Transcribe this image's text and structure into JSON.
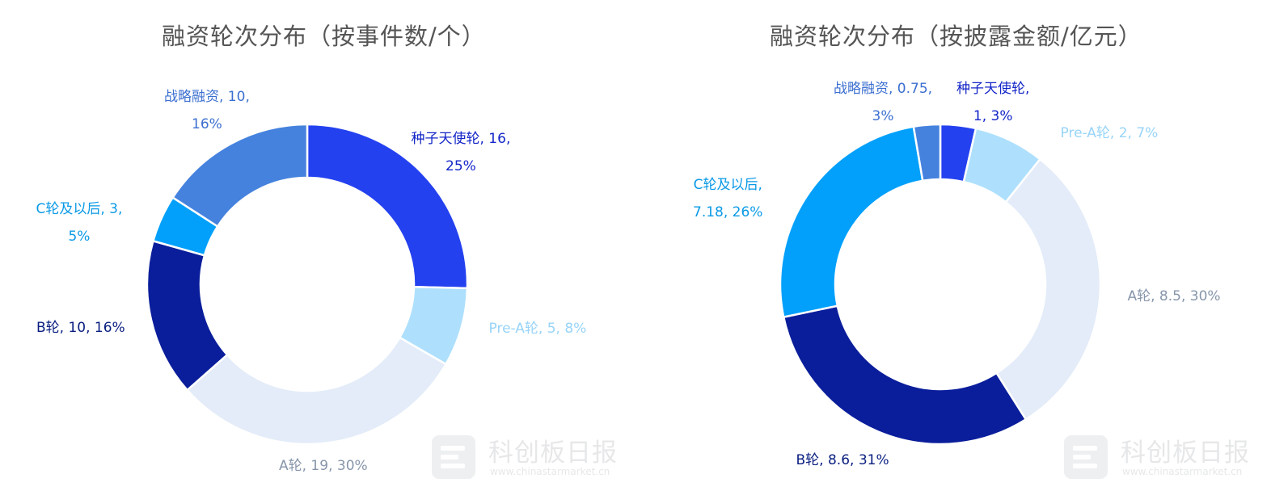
{
  "chart_data": [
    {
      "type": "donut",
      "title": "融资轮次分布（按事件数/个）",
      "slices": [
        {
          "name": "种子天使轮",
          "value": 16,
          "percent": "25%",
          "color": "#2441ef",
          "label_lines": [
            "种子天使轮, 16,",
            "25%"
          ]
        },
        {
          "name": "Pre-A轮",
          "value": 5,
          "percent": "8%",
          "color": "#aee0fd",
          "label_lines": [
            "Pre-A轮, 5, 8%"
          ]
        },
        {
          "name": "A轮",
          "value": 19,
          "percent": "30%",
          "color": "#e3ecf8",
          "label_lines": [
            "A轮, 19, 30%"
          ]
        },
        {
          "name": "B轮",
          "value": 10,
          "percent": "16%",
          "color": "#0a1e9b",
          "label_lines": [
            "B轮, 10, 16%"
          ]
        },
        {
          "name": "C轮及以后",
          "value": 3,
          "percent": "5%",
          "color": "#02a0fb",
          "label_lines": [
            "C轮及以后, 3,",
            "5%"
          ]
        },
        {
          "name": "战略融资",
          "value": 10,
          "percent": "16%",
          "color": "#4582de",
          "label_lines": [
            "战略融资, 10,",
            "16%"
          ]
        }
      ]
    },
    {
      "type": "donut",
      "title": "融资轮次分布（按披露金额/亿元）",
      "slices": [
        {
          "name": "种子天使轮",
          "value": 1,
          "percent": "3%",
          "color": "#2441ef",
          "label_lines": [
            "种子天使轮,",
            "1, 3%"
          ]
        },
        {
          "name": "Pre-A轮",
          "value": 2,
          "percent": "7%",
          "color": "#aee0fd",
          "label_lines": [
            "Pre-A轮, 2, 7%"
          ]
        },
        {
          "name": "A轮",
          "value": 8.5,
          "percent": "30%",
          "color": "#e3ecf8",
          "label_lines": [
            "A轮, 8.5, 30%"
          ]
        },
        {
          "name": "B轮",
          "value": 8.6,
          "percent": "31%",
          "color": "#0a1e9b",
          "label_lines": [
            "B轮, 8.6, 31%"
          ]
        },
        {
          "name": "C轮及以后",
          "value": 7.18,
          "percent": "26%",
          "color": "#02a0fb",
          "label_lines": [
            "C轮及以后,",
            "7.18, 26%"
          ]
        },
        {
          "name": "战略融资",
          "value": 0.75,
          "percent": "3%",
          "color": "#4582de",
          "label_lines": [
            "战略融资, 0.75,",
            "3%"
          ]
        }
      ]
    }
  ],
  "label_colors": {
    "种子天使轮": "#1426c8",
    "Pre-A轮": "#98d4f8",
    "A轮": "#8796aa",
    "B轮": "#0a1e80",
    "C轮及以后": "#0a9ae6",
    "战略融资": "#3b6fd0"
  },
  "watermark": {
    "name": "科创板日报",
    "url": "www.chinastarmarket.cn"
  }
}
